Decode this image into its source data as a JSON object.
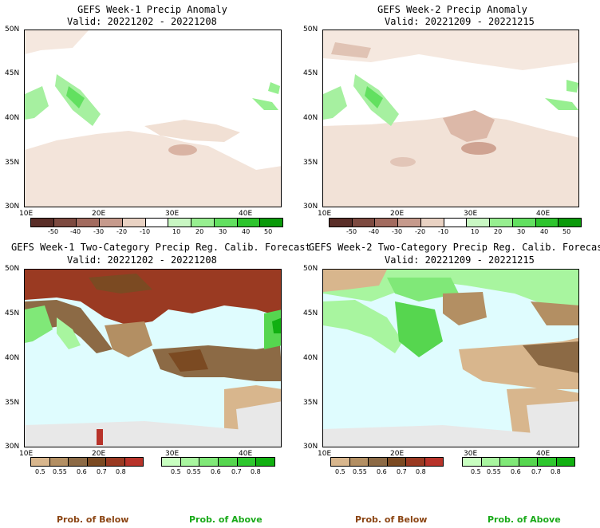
{
  "panels": [
    {
      "title": "GEFS Week-1 Precip Anomaly",
      "valid": "Valid: 20221202 - 20221208"
    },
    {
      "title": "GEFS Week-2 Precip Anomaly",
      "valid": "Valid: 20221209 - 20221215"
    },
    {
      "title": "GEFS Week-1 Two-Category Precip Reg. Calib. Forecast",
      "valid": "Valid: 20221202 - 20221208"
    },
    {
      "title": "GEFS Week-2 Two-Category Precip Reg. Calib. Forecast",
      "valid": "Valid: 20221209 - 20221215"
    }
  ],
  "lat_labels": [
    "50N",
    "45N",
    "40N",
    "35N",
    "30N"
  ],
  "lon_labels": [
    "10E",
    "20E",
    "30E",
    "40E"
  ],
  "anomaly_colorbar": {
    "labels": [
      "-50",
      "-40",
      "-30",
      "-20",
      "-10",
      "10",
      "20",
      "30",
      "40",
      "50"
    ],
    "colors": [
      "#5a2e28",
      "#7d4a40",
      "#a26b5f",
      "#c69a8c",
      "#e9d2c3",
      "#ffffff",
      "#c9f7c3",
      "#97ef90",
      "#62e060",
      "#2dc42d",
      "#0a9a0a"
    ]
  },
  "prob_below_colorbar": {
    "labels": [
      "0.5",
      "0.55",
      "0.6",
      "0.7",
      "0.8"
    ],
    "colors": [
      "#d8b68d",
      "#b38f63",
      "#8c6a45",
      "#7b4a22",
      "#9a3a22",
      "#b8332a"
    ]
  },
  "prob_above_colorbar": {
    "labels": [
      "0.5",
      "0.55",
      "0.6",
      "0.7",
      "0.8"
    ],
    "colors": [
      "#c8ffc0",
      "#a8f59f",
      "#80e878",
      "#56d64f",
      "#2ec72e",
      "#11b011"
    ]
  },
  "footer": {
    "below": "Prob. of Below",
    "above": "Prob. of Above"
  },
  "colors": {
    "sea": "#dffcfe",
    "no_data": "#e8e8e8",
    "below_color": "#8b4513",
    "above_color": "#1aaa1a"
  }
}
